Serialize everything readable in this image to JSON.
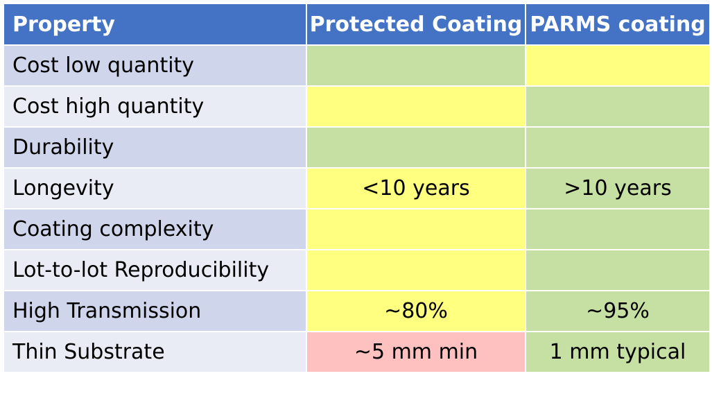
{
  "table": {
    "headers": {
      "property": "Property",
      "protected": "Protected Coating",
      "parms": "PARMS coating"
    },
    "rating_colors": {
      "green": "#c6e0a3",
      "yellow": "#ffff80",
      "red": "#ffc0c0"
    },
    "header_color": "#4472c4",
    "rows": [
      {
        "property": "Cost low quantity",
        "protected": {
          "text": "",
          "rating": "green"
        },
        "parms": {
          "text": "",
          "rating": "yellow"
        }
      },
      {
        "property": "Cost high quantity",
        "protected": {
          "text": "",
          "rating": "yellow"
        },
        "parms": {
          "text": "",
          "rating": "green"
        }
      },
      {
        "property": "Durability",
        "protected": {
          "text": "",
          "rating": "green"
        },
        "parms": {
          "text": "",
          "rating": "green"
        }
      },
      {
        "property": "Longevity",
        "protected": {
          "text": "<10 years",
          "rating": "yellow"
        },
        "parms": {
          "text": ">10 years",
          "rating": "green"
        }
      },
      {
        "property": "Coating complexity",
        "protected": {
          "text": "",
          "rating": "yellow"
        },
        "parms": {
          "text": "",
          "rating": "green"
        }
      },
      {
        "property": "Lot-to-lot Reproducibility",
        "protected": {
          "text": "",
          "rating": "yellow"
        },
        "parms": {
          "text": "",
          "rating": "green"
        }
      },
      {
        "property": "High Transmission",
        "protected": {
          "text": "~80%",
          "rating": "yellow"
        },
        "parms": {
          "text": "~95%",
          "rating": "green"
        }
      },
      {
        "property": "Thin Substrate",
        "protected": {
          "text": "~5 mm min",
          "rating": "red"
        },
        "parms": {
          "text": "1 mm typical",
          "rating": "green"
        }
      }
    ]
  }
}
